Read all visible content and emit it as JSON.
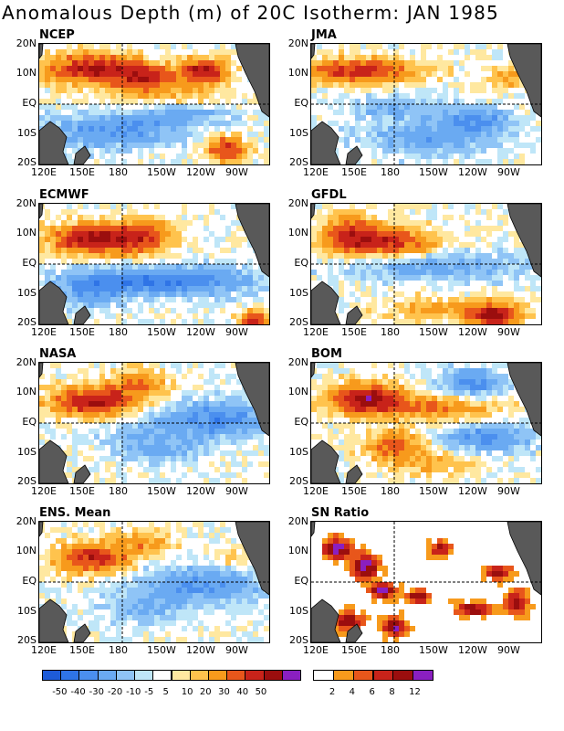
{
  "title": "Anomalous Depth (m) of 20C Isotherm: JAN 1985",
  "y_ticks": [
    "20N",
    "10N",
    "EQ",
    "10S",
    "20S"
  ],
  "x_ticks": [
    "120E",
    "150E",
    "180",
    "150W",
    "120W",
    "90W"
  ],
  "chart_data": [
    {
      "type": "heatmap",
      "title": "NCEP",
      "variable": "20C isotherm depth anomaly",
      "units": "m"
    },
    {
      "type": "heatmap",
      "title": "JMA",
      "variable": "20C isotherm depth anomaly",
      "units": "m"
    },
    {
      "type": "heatmap",
      "title": "ECMWF",
      "variable": "20C isotherm depth anomaly",
      "units": "m"
    },
    {
      "type": "heatmap",
      "title": "GFDL",
      "variable": "20C isotherm depth anomaly",
      "units": "m"
    },
    {
      "type": "heatmap",
      "title": "NASA",
      "variable": "20C isotherm depth anomaly",
      "units": "m"
    },
    {
      "type": "heatmap",
      "title": "BOM",
      "variable": "20C isotherm depth anomaly",
      "units": "m"
    },
    {
      "type": "heatmap",
      "title": "ENS. Mean",
      "variable": "20C isotherm depth anomaly",
      "units": "m"
    },
    {
      "type": "heatmap",
      "title": "SN Ratio",
      "variable": "signal-to-noise ratio"
    }
  ],
  "colorbar_anomaly": {
    "labels": [
      "-50",
      "-40",
      "-30",
      "-20",
      "-10",
      "-5",
      "5",
      "10",
      "20",
      "30",
      "40",
      "50"
    ],
    "colors": [
      "#1e5bd8",
      "#2f74e6",
      "#4b8fee",
      "#6aaaf2",
      "#8fc4f6",
      "#bfe6f8",
      "#ffffff",
      "#ffe8a0",
      "#ffc34d",
      "#f79a1c",
      "#e8561b",
      "#c8231a",
      "#9b0e0e",
      "#8a1fc0"
    ]
  },
  "colorbar_ratio": {
    "labels": [
      "2",
      "4",
      "6",
      "8",
      "12"
    ],
    "colors": [
      "#ffffff",
      "#f79a1c",
      "#e8561b",
      "#c8231a",
      "#9b0e0e",
      "#8a1fc0"
    ]
  },
  "land_color": "#595959"
}
